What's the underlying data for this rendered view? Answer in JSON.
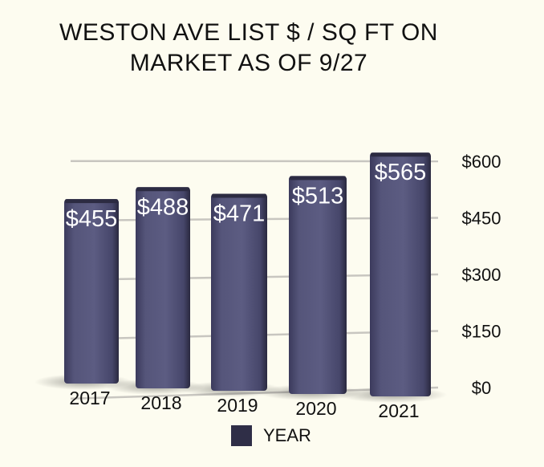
{
  "chart_data": {
    "type": "bar",
    "title": "WESTON AVE LIST $ / SQ FT ON MARKET AS OF 9/27",
    "title_lines": [
      "WESTON AVE LIST $ / SQ FT ON",
      "MARKET AS OF 9/27"
    ],
    "categories": [
      "2017",
      "2018",
      "2019",
      "2020",
      "2021"
    ],
    "series": [
      {
        "name": "YEAR",
        "values": [
          455,
          488,
          471,
          513,
          565
        ],
        "color": "#545478"
      }
    ],
    "data_labels": [
      "$455",
      "$488",
      "$471",
      "$513",
      "$565"
    ],
    "y_ticks": [
      "$0",
      "$150",
      "$300",
      "$450",
      "$600"
    ],
    "y_tick_values": [
      0,
      150,
      300,
      450,
      600
    ],
    "ylim": [
      0,
      600
    ],
    "grid": true,
    "legend": "bottom",
    "axis_position": "right",
    "colors": {
      "bar": "#545478",
      "bar_dark": "#2f2e47",
      "grid": "#c8c6c0",
      "background": "#fdfcf0"
    }
  }
}
